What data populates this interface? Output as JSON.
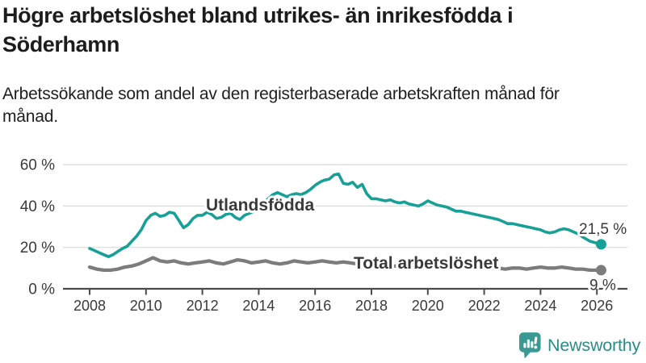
{
  "header": {
    "title": "Högre arbetslöshet bland utrikes- än inrikesfödda i Söderhamn",
    "subtitle": "Arbetssökande som andel av den registerbaserade arbetskraften månad för månad."
  },
  "branding": {
    "logo_text": "Newsworthy",
    "logo_icon": "speech-bubble-bar-chart-icon",
    "logo_color": "#2b8c87",
    "icon_color": "#3a9a93"
  },
  "colors": {
    "teal": "#17a096",
    "gray": "#7c7c7c",
    "gray_label": "#6f6f6f",
    "grid": "#d9d9d9",
    "axis": "#4b4b4b",
    "title_text": "#1c1c1c",
    "end_label_text": "#1a1a1a"
  },
  "chart_data": {
    "type": "line",
    "title": "Högre arbetslöshet bland utrikes- än inrikesfödda i Söderhamn",
    "xlabel": "",
    "ylabel": "",
    "grid": "horizontal",
    "legend_position": "inline-labels",
    "xlim": [
      2007.1,
      2027.1
    ],
    "ylim": [
      0,
      65
    ],
    "x_ticks": [
      2008,
      2010,
      2012,
      2014,
      2016,
      2018,
      2020,
      2022,
      2024,
      2026
    ],
    "y_ticks": [
      {
        "value": 0,
        "label": "0 %"
      },
      {
        "value": 20,
        "label": "20 %"
      },
      {
        "value": 40,
        "label": "40 %"
      },
      {
        "value": 60,
        "label": "60 %"
      }
    ],
    "series": [
      {
        "id": "utlandsfodda",
        "name": "Utlandsfödda",
        "color": "#17a096",
        "end_label": "21,5 %",
        "end_value": 21.5,
        "points": [
          [
            2008.0,
            19.5
          ],
          [
            2008.17,
            18.5
          ],
          [
            2008.33,
            17.5
          ],
          [
            2008.5,
            16.5
          ],
          [
            2008.67,
            15.5
          ],
          [
            2008.83,
            16.5
          ],
          [
            2009.0,
            18
          ],
          [
            2009.17,
            19.5
          ],
          [
            2009.33,
            20.5
          ],
          [
            2009.5,
            23
          ],
          [
            2009.67,
            25.5
          ],
          [
            2009.83,
            28.5
          ],
          [
            2010.0,
            33
          ],
          [
            2010.17,
            35.5
          ],
          [
            2010.33,
            36.5
          ],
          [
            2010.5,
            35
          ],
          [
            2010.67,
            35.5
          ],
          [
            2010.83,
            37
          ],
          [
            2011.0,
            36.5
          ],
          [
            2011.17,
            33
          ],
          [
            2011.33,
            29.5
          ],
          [
            2011.5,
            31
          ],
          [
            2011.67,
            34
          ],
          [
            2011.83,
            35.5
          ],
          [
            2012.0,
            35.5
          ],
          [
            2012.17,
            37
          ],
          [
            2012.33,
            36
          ],
          [
            2012.5,
            34
          ],
          [
            2012.67,
            34.5
          ],
          [
            2012.83,
            36
          ],
          [
            2013.0,
            36.5
          ],
          [
            2013.17,
            34.5
          ],
          [
            2013.33,
            33.5
          ],
          [
            2013.5,
            35.5
          ],
          [
            2013.67,
            36.5
          ],
          [
            2013.83,
            37.5
          ],
          [
            2014.0,
            38.5
          ],
          [
            2014.17,
            41
          ],
          [
            2014.33,
            43.5
          ],
          [
            2014.5,
            45.5
          ],
          [
            2014.67,
            46.5
          ],
          [
            2014.83,
            45.5
          ],
          [
            2015.0,
            44.5
          ],
          [
            2015.17,
            45.5
          ],
          [
            2015.33,
            46
          ],
          [
            2015.5,
            45.5
          ],
          [
            2015.67,
            46.5
          ],
          [
            2015.83,
            48
          ],
          [
            2016.0,
            50
          ],
          [
            2016.17,
            51.5
          ],
          [
            2016.33,
            52.5
          ],
          [
            2016.5,
            53
          ],
          [
            2016.67,
            55
          ],
          [
            2016.83,
            55.5
          ],
          [
            2017.0,
            51
          ],
          [
            2017.17,
            50.5
          ],
          [
            2017.33,
            51.5
          ],
          [
            2017.5,
            49
          ],
          [
            2017.67,
            50.5
          ],
          [
            2017.83,
            46
          ],
          [
            2018.0,
            43.5
          ],
          [
            2018.17,
            43.5
          ],
          [
            2018.33,
            43
          ],
          [
            2018.5,
            42.5
          ],
          [
            2018.67,
            43
          ],
          [
            2018.83,
            42
          ],
          [
            2019.0,
            41.5
          ],
          [
            2019.17,
            42
          ],
          [
            2019.33,
            41
          ],
          [
            2019.5,
            40.5
          ],
          [
            2019.67,
            40
          ],
          [
            2019.83,
            41
          ],
          [
            2020.0,
            42.5
          ],
          [
            2020.17,
            41.5
          ],
          [
            2020.33,
            40.5
          ],
          [
            2020.5,
            40
          ],
          [
            2020.67,
            39.5
          ],
          [
            2020.83,
            38.5
          ],
          [
            2021.0,
            37.5
          ],
          [
            2021.17,
            37.5
          ],
          [
            2021.33,
            37
          ],
          [
            2021.5,
            36.5
          ],
          [
            2021.67,
            36
          ],
          [
            2021.83,
            35.5
          ],
          [
            2022.0,
            35
          ],
          [
            2022.17,
            34.5
          ],
          [
            2022.33,
            34
          ],
          [
            2022.5,
            33.5
          ],
          [
            2022.67,
            32.5
          ],
          [
            2022.83,
            31.5
          ],
          [
            2023.0,
            31.5
          ],
          [
            2023.17,
            31
          ],
          [
            2023.33,
            30.5
          ],
          [
            2023.5,
            30
          ],
          [
            2023.67,
            29.5
          ],
          [
            2023.83,
            29
          ],
          [
            2024.0,
            28.5
          ],
          [
            2024.17,
            27.5
          ],
          [
            2024.33,
            27
          ],
          [
            2024.5,
            27.5
          ],
          [
            2024.67,
            28.5
          ],
          [
            2024.83,
            29
          ],
          [
            2025.0,
            28.5
          ],
          [
            2025.17,
            27.5
          ],
          [
            2025.33,
            26.5
          ],
          [
            2025.5,
            25
          ],
          [
            2025.75,
            23
          ],
          [
            2026.15,
            21.5
          ]
        ]
      },
      {
        "id": "total",
        "name": "Total arbetslöshet",
        "color": "#7c7c7c",
        "end_label": "9 %",
        "end_value": 9,
        "points": [
          [
            2008.0,
            10.5
          ],
          [
            2008.25,
            9.5
          ],
          [
            2008.5,
            9
          ],
          [
            2008.75,
            9
          ],
          [
            2009.0,
            9.5
          ],
          [
            2009.25,
            10.5
          ],
          [
            2009.5,
            11
          ],
          [
            2009.75,
            12
          ],
          [
            2010.0,
            13.5
          ],
          [
            2010.25,
            15
          ],
          [
            2010.5,
            13.5
          ],
          [
            2010.75,
            13
          ],
          [
            2011.0,
            13.5
          ],
          [
            2011.25,
            12.5
          ],
          [
            2011.5,
            12
          ],
          [
            2011.75,
            12.5
          ],
          [
            2012.0,
            13
          ],
          [
            2012.25,
            13.5
          ],
          [
            2012.5,
            12.5
          ],
          [
            2012.75,
            12
          ],
          [
            2013.0,
            13
          ],
          [
            2013.25,
            14
          ],
          [
            2013.5,
            13.5
          ],
          [
            2013.75,
            12.5
          ],
          [
            2014.0,
            13
          ],
          [
            2014.25,
            13.5
          ],
          [
            2014.5,
            12.5
          ],
          [
            2014.75,
            12
          ],
          [
            2015.0,
            12.5
          ],
          [
            2015.25,
            13.5
          ],
          [
            2015.5,
            13
          ],
          [
            2015.75,
            12.5
          ],
          [
            2016.0,
            13
          ],
          [
            2016.25,
            13.5
          ],
          [
            2016.5,
            13
          ],
          [
            2016.75,
            12.5
          ],
          [
            2017.0,
            13
          ],
          [
            2017.25,
            12.5
          ],
          [
            2017.5,
            12
          ],
          [
            2017.75,
            11.5
          ],
          [
            2018.0,
            11.5
          ],
          [
            2018.25,
            11.5
          ],
          [
            2018.5,
            11
          ],
          [
            2018.75,
            11
          ],
          [
            2019.0,
            11
          ],
          [
            2019.25,
            11
          ],
          [
            2019.5,
            10.5
          ],
          [
            2019.75,
            11
          ],
          [
            2020.0,
            11.5
          ],
          [
            2020.25,
            12
          ],
          [
            2020.5,
            12
          ],
          [
            2020.75,
            11.5
          ],
          [
            2021.0,
            11.5
          ],
          [
            2021.25,
            11
          ],
          [
            2021.5,
            10.5
          ],
          [
            2021.75,
            10.5
          ],
          [
            2022.0,
            10.5
          ],
          [
            2022.25,
            10
          ],
          [
            2022.5,
            10
          ],
          [
            2022.75,
            9.5
          ],
          [
            2023.0,
            10
          ],
          [
            2023.25,
            10
          ],
          [
            2023.5,
            9.5
          ],
          [
            2023.75,
            10
          ],
          [
            2024.0,
            10.5
          ],
          [
            2024.25,
            10
          ],
          [
            2024.5,
            10
          ],
          [
            2024.75,
            10.5
          ],
          [
            2025.0,
            10
          ],
          [
            2025.25,
            9.5
          ],
          [
            2025.5,
            9.5
          ],
          [
            2025.75,
            9
          ],
          [
            2026.15,
            9
          ]
        ]
      }
    ]
  }
}
